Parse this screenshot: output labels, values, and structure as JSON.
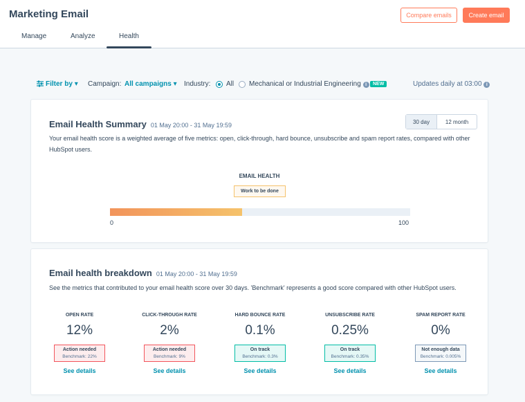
{
  "header": {
    "title": "Marketing Email",
    "compare_label": "Compare emails",
    "create_label": "Create email",
    "tabs": [
      {
        "label": "Manage"
      },
      {
        "label": "Analyze"
      },
      {
        "label": "Health"
      }
    ]
  },
  "filters": {
    "filter_by": "Filter by",
    "campaign_label": "Campaign:",
    "campaign_value": "All campaigns",
    "industry_label": "Industry:",
    "option_all": "All",
    "option_industry": "Mechanical or Industrial Engineering",
    "new_badge": "NEW",
    "updates": "Updates daily at 03:00",
    "selected_option": "All"
  },
  "summary": {
    "title": "Email Health Summary",
    "date_range": "01 May 20:00 - 31 May 19:59",
    "description": "Your email health score is a weighted average of five metrics: open, click-through, hard bounce, unsubscribe and spam report rates, compared with other HubSpot users.",
    "toggle_30": "30 day",
    "toggle_12": "12 month",
    "active_toggle": "30 day",
    "health_label": "EMAIL HEALTH",
    "health_status": "Work to be done",
    "score_min": "0",
    "score_max": "100",
    "score_value": 44
  },
  "breakdown": {
    "title": "Email health breakdown",
    "date_range": "01 May 20:00 - 31 May 19:59",
    "description": "See the metrics that contributed to your email health score over 30 days. 'Benchmark' represents a good score compared with other HubSpot users.",
    "metrics": [
      {
        "label": "OPEN RATE",
        "value": "12%",
        "status": "Action needed",
        "benchmark": "Benchmark: 22%",
        "link": "See details"
      },
      {
        "label": "CLICK-THROUGH RATE",
        "value": "2%",
        "status": "Action needed",
        "benchmark": "Benchmark: 9%",
        "link": "See details"
      },
      {
        "label": "HARD BOUNCE RATE",
        "value": "0.1%",
        "status": "On track",
        "benchmark": "Benchmark: 0.3%",
        "link": "See details"
      },
      {
        "label": "UNSUBSCRIBE RATE",
        "value": "0.25%",
        "status": "On track",
        "benchmark": "Benchmark: 0.35%",
        "link": "See details"
      },
      {
        "label": "SPAM REPORT RATE",
        "value": "0%",
        "status": "Not enough data",
        "benchmark": "Benchmark: 0.005%",
        "link": "See details"
      }
    ]
  },
  "colors": {
    "accent": "#ff7a59",
    "link": "#0091ae",
    "danger": "#f2545b",
    "success": "#00bda5",
    "warning": "#f5c26b"
  }
}
